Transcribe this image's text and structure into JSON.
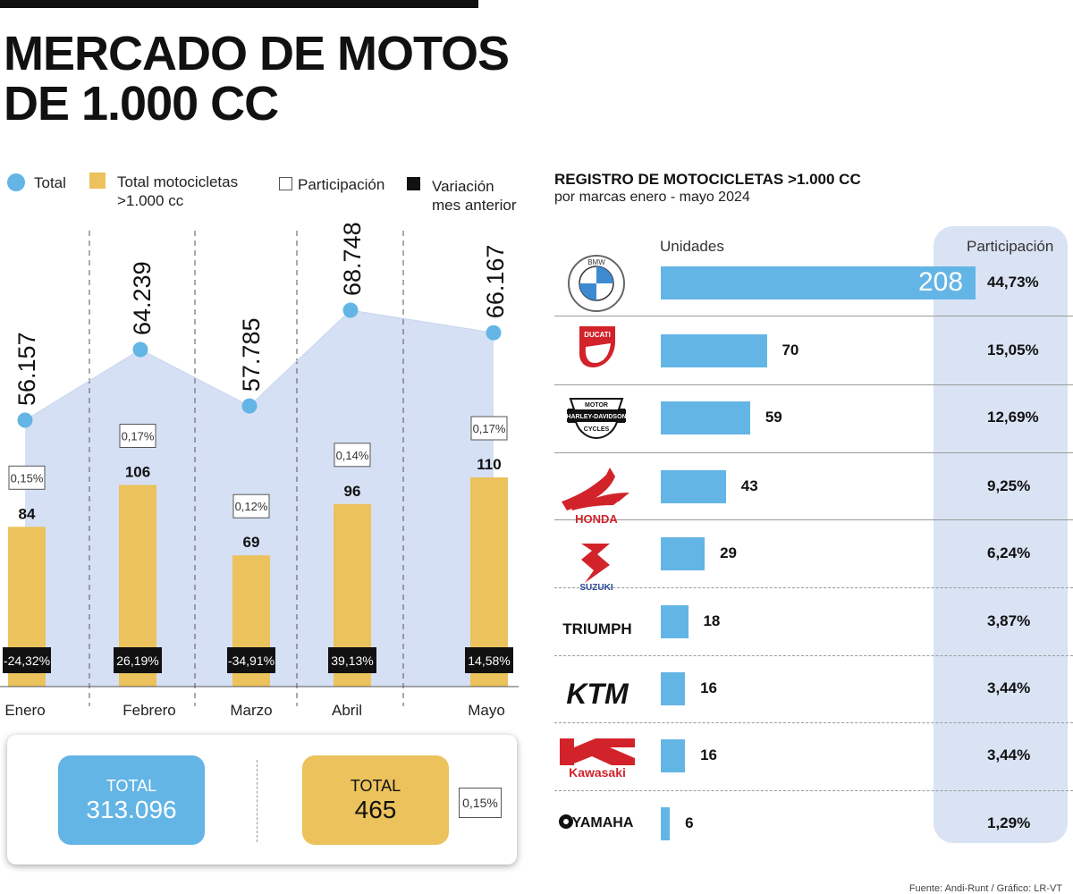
{
  "title": {
    "line1": "MERCADO DE MOTOS",
    "line2": "DE 1.000 CC"
  },
  "legend": {
    "total": "Total",
    "motos_line1": "Total motocicletas",
    "motos_line2": ">1.000 cc",
    "participacion": "Participación",
    "variacion_line1": "Variación",
    "variacion_line2": "mes anterior"
  },
  "colors": {
    "blue": "#63b5e5",
    "area": "#d6e0f4",
    "gold": "#ebc25b",
    "black": "#111111"
  },
  "chart_data": [
    {
      "type": "line+bar",
      "title": "MERCADO DE MOTOS DE 1.000 CC",
      "categories": [
        "Enero",
        "Febrero",
        "Marzo",
        "Abril",
        "Mayo"
      ],
      "series": [
        {
          "name": "Total",
          "type": "line-area",
          "values": [
            56157,
            64239,
            57785,
            68748,
            66167
          ],
          "labels": [
            "56.157",
            "64.239",
            "57.785",
            "68.748",
            "66.167"
          ]
        },
        {
          "name": "Total motocicletas >1.000 cc",
          "type": "bar",
          "values": [
            84,
            106,
            69,
            96,
            110
          ],
          "labels": [
            "84",
            "106",
            "69",
            "96",
            "110"
          ]
        },
        {
          "name": "Participación",
          "labels": [
            "0,15%",
            "0,17%",
            "0,12%",
            "0,14%",
            "0,17%"
          ]
        },
        {
          "name": "Variación mes anterior",
          "labels": [
            "-24,32%",
            "26,19%",
            "-34,91%",
            "39,13%",
            "14,58%"
          ]
        }
      ],
      "ylim_total": [
        0,
        80000
      ],
      "ylim_motos": [
        0,
        240
      ]
    },
    {
      "type": "bar",
      "orientation": "horizontal",
      "title": "REGISTRO DE MOTOCICLETAS >1.000 CC",
      "subtitle": "por marcas enero - mayo 2024",
      "categories": [
        "BMW",
        "DUCATI",
        "HARLEY-DAVIDSON",
        "HONDA",
        "SUZUKI",
        "TRIUMPH",
        "KTM",
        "Kawasaki",
        "YAMAHA"
      ],
      "values": [
        208,
        70,
        59,
        43,
        29,
        18,
        16,
        16,
        6
      ],
      "labels": [
        "208",
        "70",
        "59",
        "43",
        "29",
        "18",
        "16",
        "16",
        "6"
      ],
      "participation": [
        "44,73%",
        "15,05%",
        "12,69%",
        "9,25%",
        "6,24%",
        "3,87%",
        "3,44%",
        "3,44%",
        "1,29%"
      ],
      "header_units": "Unidades",
      "header_participation": "Participación",
      "xlim": [
        0,
        208
      ]
    }
  ],
  "logos": {
    "bmw": "BMW",
    "ducati": "DUCATI",
    "harley_top": "MOTOR",
    "harley_mid": "HARLEY-DAVIDSON",
    "harley_bot": "CYCLES",
    "honda": "HONDA",
    "suzuki": "SUZUKI",
    "triumph": "TRIUMPH",
    "ktm": "KTM",
    "kawasaki": "Kawasaki",
    "yamaha": "YAMAHA"
  },
  "totals": {
    "total_label": "TOTAL",
    "total_value": "313.096",
    "motos_label": "TOTAL",
    "motos_value": "465",
    "participation": "0,15%"
  },
  "footnote": "Fuente: Andi-Runt / Gráfico: LR-VT"
}
